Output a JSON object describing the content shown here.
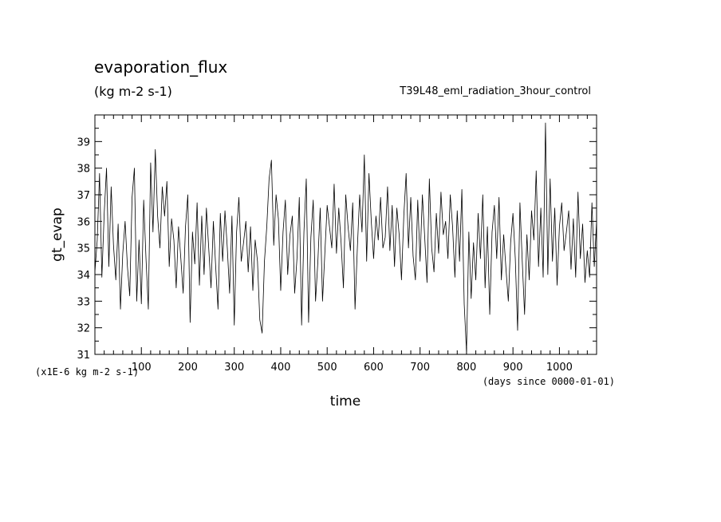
{
  "chart_data": {
    "type": "line",
    "title": "evaporation_flux",
    "subtitle": "(kg m-2 s-1)",
    "experiment": "T39L48_eml_radiation_3hour_control",
    "xlabel": "time",
    "xunit": "(days since 0000-01-01)",
    "ylabel": "gt_evap",
    "yunit": "(x1E-6 kg m-2 s-1)",
    "xlim": [
      0,
      1080
    ],
    "ylim": [
      31,
      40
    ],
    "xticks": [
      100,
      200,
      300,
      400,
      500,
      600,
      700,
      800,
      900,
      1000
    ],
    "yticks": [
      31,
      32,
      33,
      34,
      35,
      36,
      37,
      38,
      39
    ],
    "grid": false,
    "series": [
      {
        "values": [
          [
            0,
            34.1
          ],
          [
            5,
            35.3
          ],
          [
            10,
            37.8
          ],
          [
            15,
            33.9
          ],
          [
            20,
            36.3
          ],
          [
            25,
            38.0
          ],
          [
            30,
            34.3
          ],
          [
            35,
            37.3
          ],
          [
            40,
            35.1
          ],
          [
            45,
            33.8
          ],
          [
            50,
            35.9
          ],
          [
            55,
            32.7
          ],
          [
            60,
            34.8
          ],
          [
            65,
            36.0
          ],
          [
            70,
            34.3
          ],
          [
            75,
            33.2
          ],
          [
            80,
            36.9
          ],
          [
            85,
            38.0
          ],
          [
            90,
            33.0
          ],
          [
            95,
            35.3
          ],
          [
            100,
            32.9
          ],
          [
            105,
            36.8
          ],
          [
            110,
            34.6
          ],
          [
            115,
            32.7
          ],
          [
            120,
            38.2
          ],
          [
            125,
            35.6
          ],
          [
            130,
            38.7
          ],
          [
            135,
            36.2
          ],
          [
            140,
            35.0
          ],
          [
            145,
            37.3
          ],
          [
            150,
            36.2
          ],
          [
            155,
            37.5
          ],
          [
            160,
            34.3
          ],
          [
            165,
            36.1
          ],
          [
            170,
            35.3
          ],
          [
            175,
            33.5
          ],
          [
            180,
            35.8
          ],
          [
            185,
            34.6
          ],
          [
            190,
            33.3
          ],
          [
            195,
            35.8
          ],
          [
            200,
            37.0
          ],
          [
            205,
            32.2
          ],
          [
            210,
            35.6
          ],
          [
            215,
            34.4
          ],
          [
            220,
            36.7
          ],
          [
            225,
            33.6
          ],
          [
            230,
            36.2
          ],
          [
            235,
            34.0
          ],
          [
            240,
            36.5
          ],
          [
            245,
            35.0
          ],
          [
            250,
            33.5
          ],
          [
            255,
            36.0
          ],
          [
            260,
            34.3
          ],
          [
            265,
            32.7
          ],
          [
            270,
            36.3
          ],
          [
            275,
            34.5
          ],
          [
            280,
            36.4
          ],
          [
            285,
            35.0
          ],
          [
            290,
            33.3
          ],
          [
            295,
            36.2
          ],
          [
            300,
            32.1
          ],
          [
            305,
            35.6
          ],
          [
            310,
            36.9
          ],
          [
            315,
            34.5
          ],
          [
            320,
            35.2
          ],
          [
            325,
            36.0
          ],
          [
            330,
            34.1
          ],
          [
            335,
            35.8
          ],
          [
            340,
            33.4
          ],
          [
            345,
            35.3
          ],
          [
            350,
            34.5
          ],
          [
            355,
            32.3
          ],
          [
            360,
            31.8
          ],
          [
            365,
            34.5
          ],
          [
            370,
            35.8
          ],
          [
            375,
            37.6
          ],
          [
            380,
            38.3
          ],
          [
            385,
            35.1
          ],
          [
            390,
            37.0
          ],
          [
            395,
            36.1
          ],
          [
            400,
            33.4
          ],
          [
            405,
            35.6
          ],
          [
            410,
            36.8
          ],
          [
            415,
            34.0
          ],
          [
            420,
            35.5
          ],
          [
            425,
            36.2
          ],
          [
            430,
            33.3
          ],
          [
            435,
            34.6
          ],
          [
            440,
            36.9
          ],
          [
            445,
            32.1
          ],
          [
            450,
            35.6
          ],
          [
            455,
            37.6
          ],
          [
            460,
            32.2
          ],
          [
            465,
            35.4
          ],
          [
            470,
            36.8
          ],
          [
            475,
            33.0
          ],
          [
            480,
            34.5
          ],
          [
            485,
            36.5
          ],
          [
            490,
            33.0
          ],
          [
            495,
            34.8
          ],
          [
            500,
            36.6
          ],
          [
            505,
            35.8
          ],
          [
            510,
            35.0
          ],
          [
            515,
            37.4
          ],
          [
            520,
            34.8
          ],
          [
            525,
            36.5
          ],
          [
            530,
            35.2
          ],
          [
            535,
            33.5
          ],
          [
            540,
            37.0
          ],
          [
            545,
            35.8
          ],
          [
            550,
            34.9
          ],
          [
            555,
            36.7
          ],
          [
            560,
            32.7
          ],
          [
            565,
            35.0
          ],
          [
            570,
            37.0
          ],
          [
            575,
            35.6
          ],
          [
            580,
            38.5
          ],
          [
            585,
            34.5
          ],
          [
            590,
            37.8
          ],
          [
            595,
            36.0
          ],
          [
            600,
            34.6
          ],
          [
            605,
            36.2
          ],
          [
            610,
            35.3
          ],
          [
            615,
            36.9
          ],
          [
            620,
            35.0
          ],
          [
            625,
            35.4
          ],
          [
            630,
            37.3
          ],
          [
            635,
            34.9
          ],
          [
            640,
            36.6
          ],
          [
            645,
            34.3
          ],
          [
            650,
            36.5
          ],
          [
            655,
            35.5
          ],
          [
            660,
            33.8
          ],
          [
            665,
            36.2
          ],
          [
            670,
            37.8
          ],
          [
            675,
            35.0
          ],
          [
            680,
            36.9
          ],
          [
            685,
            34.7
          ],
          [
            690,
            33.8
          ],
          [
            695,
            36.8
          ],
          [
            700,
            34.5
          ],
          [
            705,
            37.0
          ],
          [
            710,
            35.4
          ],
          [
            715,
            33.7
          ],
          [
            720,
            37.6
          ],
          [
            725,
            35.0
          ],
          [
            730,
            34.1
          ],
          [
            735,
            36.3
          ],
          [
            740,
            34.8
          ],
          [
            745,
            37.1
          ],
          [
            750,
            35.5
          ],
          [
            755,
            36.0
          ],
          [
            760,
            34.6
          ],
          [
            765,
            37.0
          ],
          [
            770,
            35.8
          ],
          [
            775,
            33.9
          ],
          [
            780,
            36.4
          ],
          [
            785,
            34.5
          ],
          [
            790,
            37.2
          ],
          [
            795,
            32.9
          ],
          [
            800,
            31.1
          ],
          [
            805,
            35.6
          ],
          [
            810,
            33.1
          ],
          [
            815,
            35.2
          ],
          [
            820,
            33.8
          ],
          [
            825,
            36.3
          ],
          [
            830,
            34.6
          ],
          [
            835,
            37.0
          ],
          [
            840,
            33.5
          ],
          [
            845,
            35.8
          ],
          [
            850,
            32.5
          ],
          [
            855,
            35.6
          ],
          [
            860,
            36.6
          ],
          [
            865,
            34.6
          ],
          [
            870,
            36.9
          ],
          [
            875,
            33.8
          ],
          [
            880,
            35.5
          ],
          [
            885,
            34.2
          ],
          [
            890,
            33.0
          ],
          [
            895,
            35.2
          ],
          [
            900,
            36.3
          ],
          [
            905,
            34.6
          ],
          [
            910,
            31.9
          ],
          [
            915,
            36.7
          ],
          [
            920,
            34.5
          ],
          [
            925,
            32.5
          ],
          [
            930,
            35.5
          ],
          [
            935,
            33.8
          ],
          [
            940,
            36.4
          ],
          [
            945,
            35.3
          ],
          [
            950,
            37.9
          ],
          [
            955,
            34.3
          ],
          [
            960,
            36.5
          ],
          [
            965,
            33.9
          ],
          [
            970,
            39.7
          ],
          [
            975,
            34.0
          ],
          [
            980,
            37.6
          ],
          [
            985,
            34.5
          ],
          [
            990,
            36.5
          ],
          [
            995,
            33.6
          ],
          [
            1000,
            35.8
          ],
          [
            1005,
            36.7
          ],
          [
            1010,
            34.9
          ],
          [
            1015,
            35.6
          ],
          [
            1020,
            36.4
          ],
          [
            1025,
            34.2
          ],
          [
            1030,
            36.1
          ],
          [
            1035,
            33.9
          ],
          [
            1040,
            37.1
          ],
          [
            1045,
            34.6
          ],
          [
            1050,
            35.9
          ],
          [
            1055,
            33.7
          ],
          [
            1060,
            34.9
          ],
          [
            1065,
            33.9
          ],
          [
            1070,
            36.7
          ],
          [
            1075,
            34.3
          ],
          [
            1080,
            36.0
          ]
        ]
      }
    ]
  }
}
